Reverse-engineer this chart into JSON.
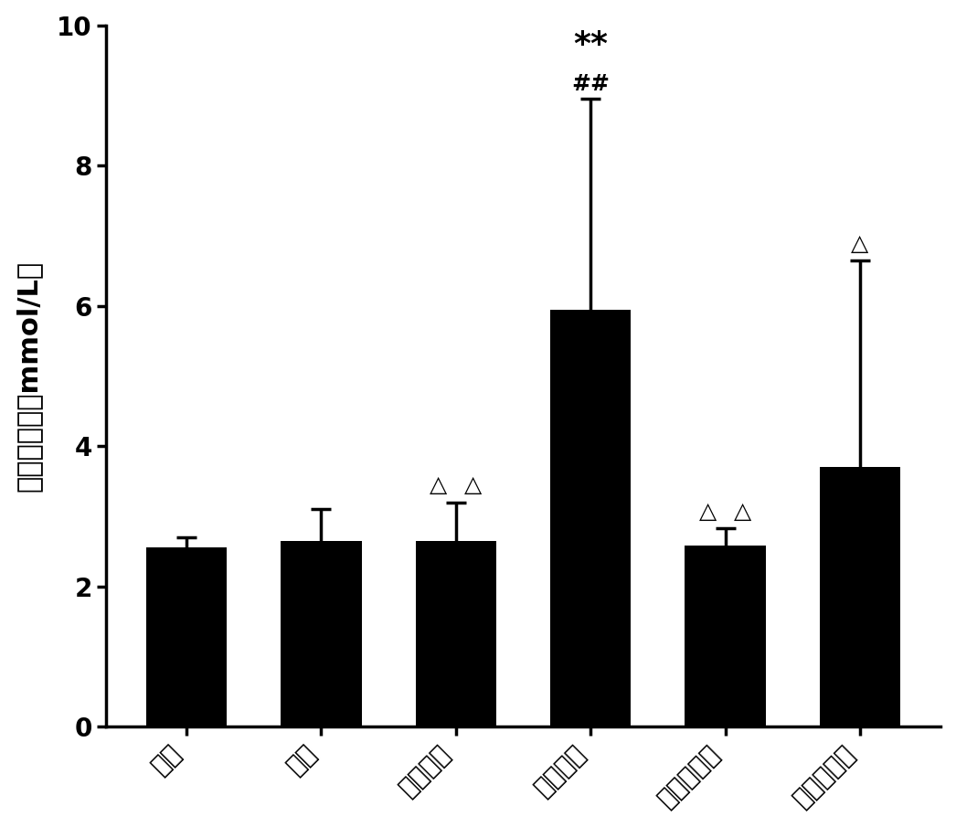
{
  "categories": [
    "正常",
    "模型",
    "苯溃马隆",
    "别屁呶醇",
    "陈皮醇提物",
    "陈皮水提物"
  ],
  "values": [
    2.55,
    2.65,
    2.65,
    5.95,
    2.58,
    3.7
  ],
  "errors": [
    0.15,
    0.45,
    0.55,
    3.0,
    0.25,
    2.95
  ],
  "bar_color": "#000000",
  "background_color": "#ffffff",
  "ylabel": "血清尿素氮（mmol/L）",
  "ylim": [
    0,
    10
  ],
  "yticks": [
    0,
    2,
    4,
    6,
    8,
    10
  ],
  "bar_width": 0.6,
  "label_fontsize": 22,
  "tick_fontsize": 20,
  "annot_fontsize": 18,
  "star_fontsize": 26
}
